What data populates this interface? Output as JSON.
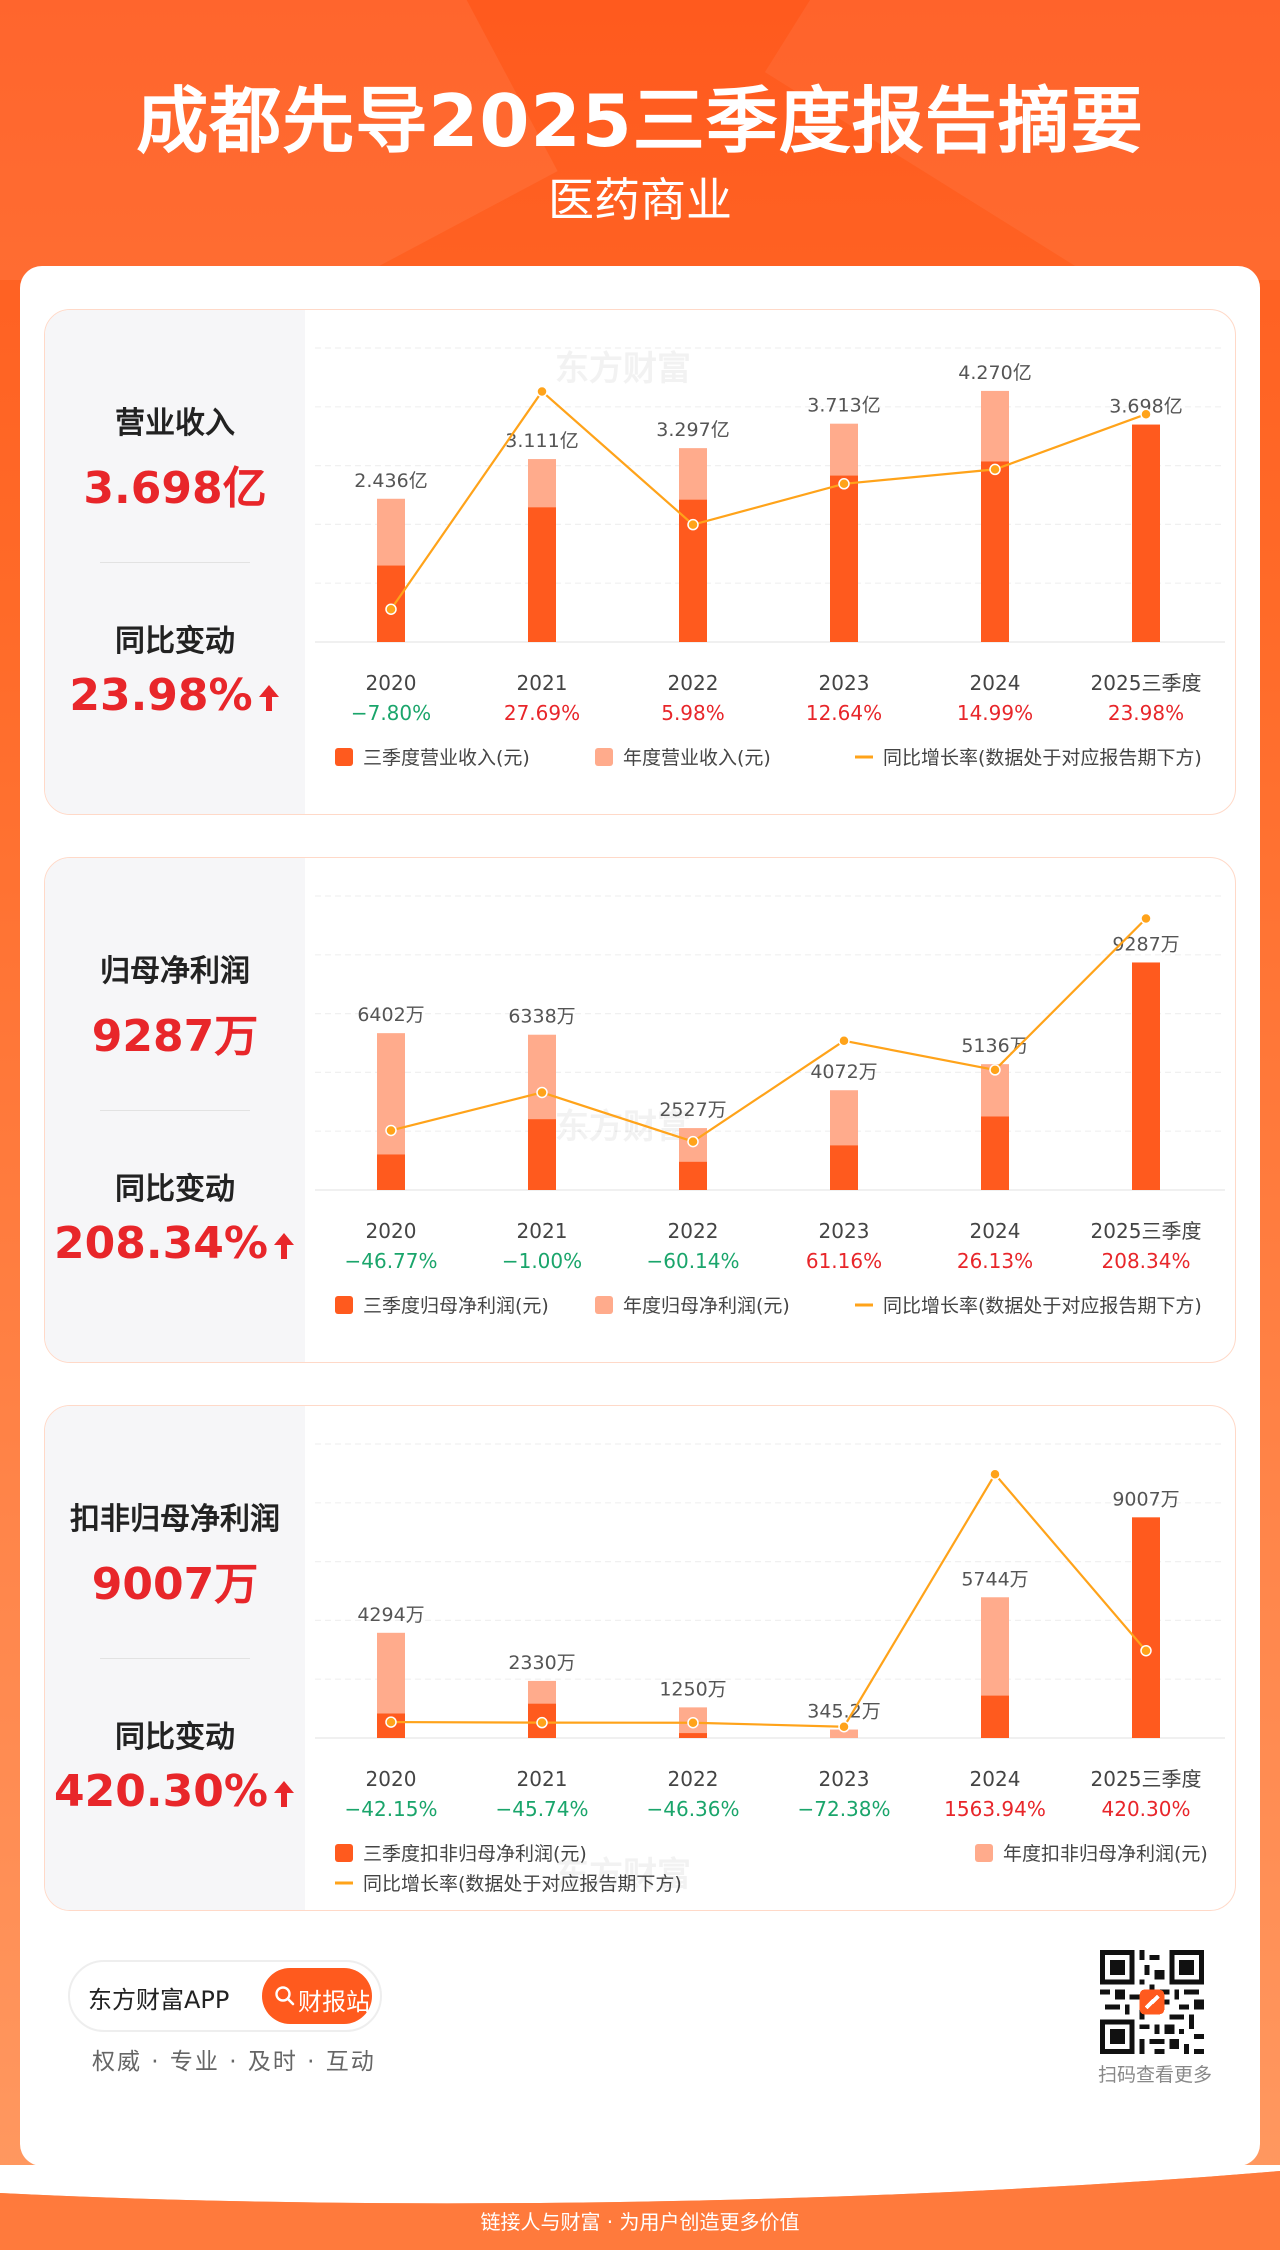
{
  "header": {
    "title": "成都先导2025三季度报告摘要",
    "subtitle": "医药商业"
  },
  "watermark": "东方财富",
  "colors": {
    "q3_bar": "#ff5a1e",
    "annual_bar": "#ffab8c",
    "line": "#ffa31a",
    "up": "#e8262a",
    "down": "#1aa56b"
  },
  "panels": [
    {
      "metric_label": "营业收入",
      "metric_value": "3.698亿",
      "change_label": "同比变动",
      "change_value": "23.98%",
      "chart_data": {
        "type": "bar",
        "categories": [
          "2020",
          "2021",
          "2022",
          "2023",
          "2024",
          "2025三季度"
        ],
        "series": [
          {
            "name": "三季度营业收入(元)",
            "values": [
              1.3,
              2.29,
              2.42,
              2.83,
              3.07,
              3.698
            ],
            "unit": "亿"
          },
          {
            "name": "年度营业收入(元)",
            "values": [
              2.436,
              3.111,
              3.297,
              3.713,
              4.27,
              null
            ],
            "unit": "亿"
          },
          {
            "name": "同比增长率(数据处于对应报告期下方)",
            "values": [
              -7.8,
              27.69,
              5.98,
              12.64,
              14.99,
              23.98
            ],
            "unit": "%"
          }
        ],
        "bar_labels": [
          "2.436亿",
          "3.111亿",
          "3.297亿",
          "3.713亿",
          "4.270亿",
          "3.698亿"
        ],
        "growth_labels": [
          "-7.80%",
          "27.69%",
          "5.98%",
          "12.64%",
          "14.99%",
          "23.98%"
        ],
        "ylim": [
          0,
          5.0
        ],
        "growth_range": [
          -12,
          32
        ],
        "legend": [
          "三季度营业收入(元)",
          "年度营业收入(元)",
          "同比增长率(数据处于对应报告期下方)"
        ],
        "legend_layout": "one-row"
      }
    },
    {
      "metric_label": "归母净利润",
      "metric_value": "9287万",
      "change_label": "同比变动",
      "change_value": "208.34%",
      "chart_data": {
        "type": "bar",
        "categories": [
          "2020",
          "2021",
          "2022",
          "2023",
          "2024",
          "2025三季度"
        ],
        "series": [
          {
            "name": "三季度归母净利润(元)",
            "values": [
              1450,
              2890,
              1150,
              1820,
              3000,
              9287
            ],
            "unit": "万"
          },
          {
            "name": "年度归母净利润(元)",
            "values": [
              6402,
              6338,
              2527,
              4072,
              5136,
              null
            ],
            "unit": "万"
          },
          {
            "name": "同比增长率(数据处于对应报告期下方)",
            "values": [
              -46.77,
              -1.0,
              -60.14,
              61.16,
              26.13,
              208.34
            ],
            "unit": "%"
          }
        ],
        "bar_labels": [
          "6402万",
          "6338万",
          "2527万",
          "4072万",
          "5136万",
          "9287万"
        ],
        "growth_labels": [
          "-46.77%",
          "-1.00%",
          "-60.14%",
          "61.16%",
          "26.13%",
          "208.34%"
        ],
        "ylim": [
          0,
          12000
        ],
        "growth_range": [
          -110,
          215
        ],
        "legend": [
          "三季度归母净利润(元)",
          "年度归母净利润(元)",
          "同比增长率(数据处于对应报告期下方)"
        ],
        "legend_layout": "one-row"
      }
    },
    {
      "metric_label": "扣非归母净利润",
      "metric_value": "9007万",
      "change_label": "同比变动",
      "change_value": "420.30%",
      "chart_data": {
        "type": "bar",
        "categories": [
          "2020",
          "2021",
          "2022",
          "2023",
          "2024",
          "2025三季度"
        ],
        "series": [
          {
            "name": "三季度扣非归母净利润(元)",
            "values": [
              1000,
              1400,
              200,
              0,
              1730,
              9007
            ],
            "unit": "万"
          },
          {
            "name": "年度扣非归母净利润(元)",
            "values": [
              4294,
              2330,
              1250,
              345.2,
              5744,
              null
            ],
            "unit": "万"
          },
          {
            "name": "同比增长率(数据处于对应报告期下方)",
            "values": [
              -42.15,
              -45.74,
              -46.36,
              -72.38,
              1563.94,
              420.3
            ],
            "unit": "%"
          }
        ],
        "bar_labels": [
          "4294万",
          "2330万",
          "1250万",
          "345.2万",
          "5744万",
          "9007万"
        ],
        "growth_labels": [
          "-42.15%",
          "-45.74%",
          "-46.36%",
          "-72.38%",
          "1563.94%",
          "420.30%"
        ],
        "ylim": [
          0,
          12000
        ],
        "growth_range": [
          -100,
          1650
        ],
        "legend": [
          "三季度扣非归母净利润(元)",
          "年度扣非归母净利润(元)",
          "同比增长率(数据处于对应报告期下方)"
        ],
        "legend_layout": "two-row"
      }
    }
  ],
  "footer": {
    "app_name": "东方财富APP",
    "button_label": "财报站",
    "slogan": "权威 · 专业 · 及时 · 互动",
    "scan_text": "扫码查看更多",
    "bottom_text": "链接人与财富 · 为用户创造更多价值"
  }
}
